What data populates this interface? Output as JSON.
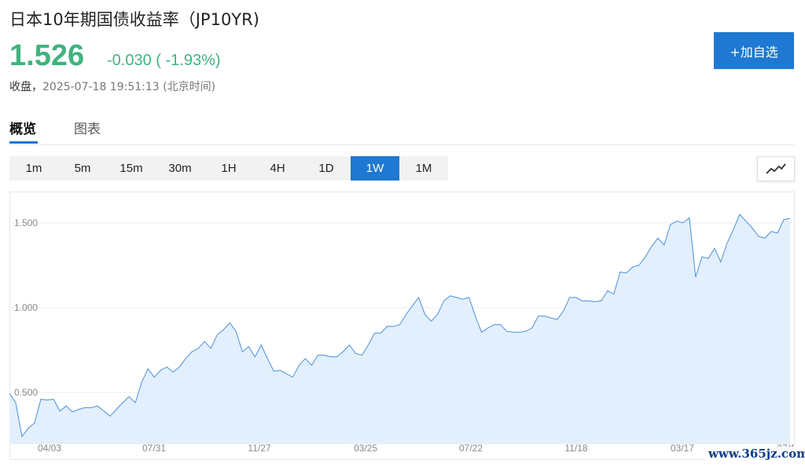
{
  "header": {
    "title": "日本10年期国债收益率（JP10YR)",
    "price": "1.526",
    "change": "-0.030 ( -1.93%)",
    "status_label": "收盘，",
    "status_time": "2025-07-18 19:51:13 (北京时间)",
    "add_button": "+加自选"
  },
  "tabs": [
    {
      "label": "概览",
      "active": true
    },
    {
      "label": "图表",
      "active": false
    }
  ],
  "ranges": [
    "1m",
    "5m",
    "15m",
    "30m",
    "1H",
    "4H",
    "1D",
    "1W",
    "1M"
  ],
  "active_range": "1W",
  "chart_type_icon": "line-chart-icon",
  "watermark": "www.365jz.com",
  "colors": {
    "accent": "#1f78d1",
    "up_green": "#3fb37f",
    "line": "#4a90d9",
    "area": "#e3effc"
  },
  "chart_data": {
    "type": "area",
    "title": "",
    "xlabel": "",
    "ylabel": "",
    "yticks": [
      0.5,
      1.0,
      1.5
    ],
    "ytick_labels": [
      "0.500",
      "1.000",
      "1.500"
    ],
    "ylim": [
      0.2,
      1.6
    ],
    "xtick_labels": [
      "04/03",
      "07/31",
      "11/27",
      "03/25",
      "07/22",
      "11/18",
      "03/17",
      "07/1"
    ],
    "grid": true,
    "legend": "none",
    "values": [
      0.495,
      0.44,
      0.24,
      0.29,
      0.32,
      0.46,
      0.455,
      0.46,
      0.39,
      0.42,
      0.385,
      0.4,
      0.41,
      0.41,
      0.42,
      0.39,
      0.36,
      0.4,
      0.44,
      0.475,
      0.44,
      0.56,
      0.64,
      0.59,
      0.63,
      0.65,
      0.62,
      0.65,
      0.7,
      0.74,
      0.76,
      0.8,
      0.76,
      0.84,
      0.87,
      0.91,
      0.86,
      0.74,
      0.77,
      0.71,
      0.78,
      0.7,
      0.625,
      0.63,
      0.61,
      0.59,
      0.66,
      0.7,
      0.66,
      0.72,
      0.72,
      0.71,
      0.71,
      0.74,
      0.78,
      0.73,
      0.72,
      0.78,
      0.85,
      0.85,
      0.89,
      0.89,
      0.9,
      0.96,
      1.01,
      1.06,
      0.96,
      0.92,
      0.96,
      1.04,
      1.07,
      1.06,
      1.05,
      1.06,
      0.95,
      0.855,
      0.88,
      0.9,
      0.9,
      0.86,
      0.855,
      0.855,
      0.86,
      0.88,
      0.95,
      0.95,
      0.94,
      0.93,
      0.98,
      1.06,
      1.06,
      1.04,
      1.04,
      1.035,
      1.04,
      1.1,
      1.08,
      1.21,
      1.205,
      1.24,
      1.25,
      1.3,
      1.36,
      1.41,
      1.37,
      1.49,
      1.51,
      1.5,
      1.53,
      1.18,
      1.3,
      1.29,
      1.35,
      1.27,
      1.38,
      1.46,
      1.55,
      1.51,
      1.47,
      1.42,
      1.41,
      1.45,
      1.44,
      1.52,
      1.526
    ]
  }
}
